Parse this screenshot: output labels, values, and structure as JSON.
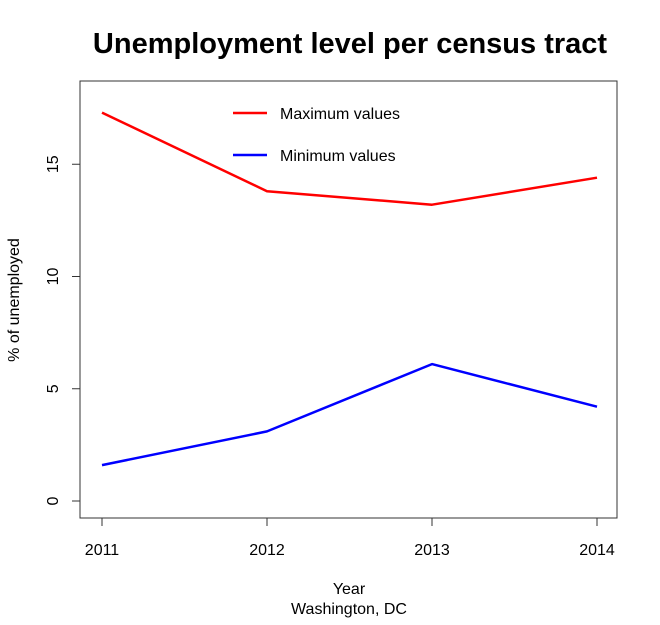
{
  "chart_data": {
    "type": "line",
    "title": "Unemployment level per census tract",
    "xlabel": "Year",
    "xsublabel": "Washington, DC",
    "ylabel": "% of unemployed",
    "x": [
      2011,
      2012,
      2013,
      2014
    ],
    "xticks": [
      "2011",
      "2012",
      "2013",
      "2014"
    ],
    "yticks": [
      "0",
      "5",
      "10",
      "15"
    ],
    "ylim": [
      0,
      17.3
    ],
    "grid": false,
    "legend_position": "top-center",
    "series": [
      {
        "name": "Maximum values",
        "color": "#ff0000",
        "values": [
          17.3,
          13.8,
          13.2,
          14.4
        ]
      },
      {
        "name": "Minimum values",
        "color": "#0000ff",
        "values": [
          1.6,
          3.1,
          6.1,
          4.2
        ]
      }
    ]
  }
}
